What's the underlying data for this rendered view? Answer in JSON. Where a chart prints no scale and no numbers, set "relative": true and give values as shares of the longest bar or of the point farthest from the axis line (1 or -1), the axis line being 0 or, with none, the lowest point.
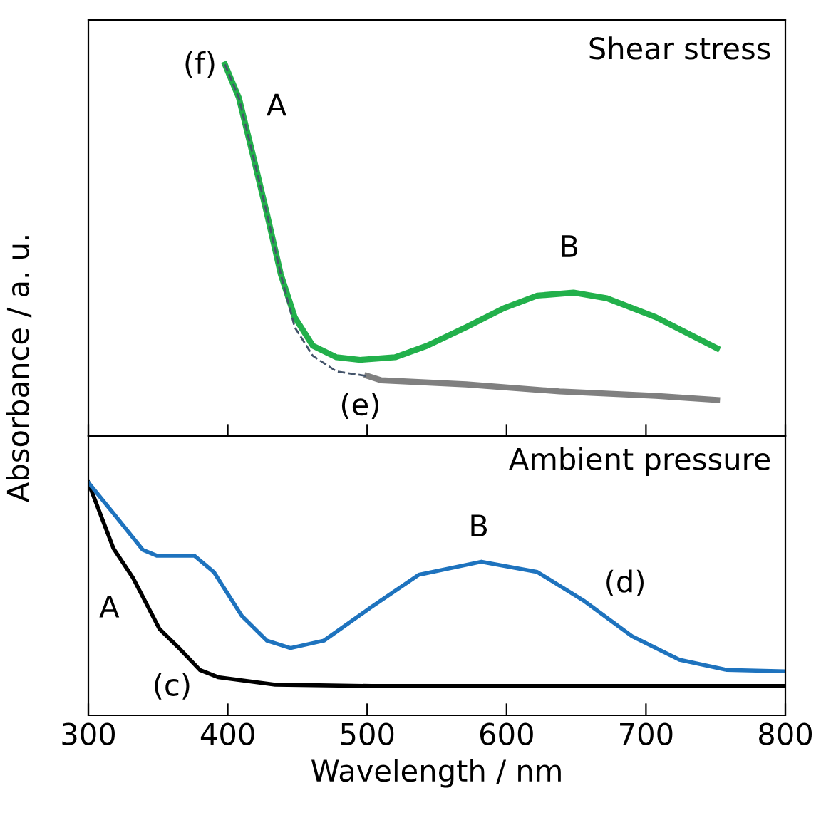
{
  "chart_data": [
    {
      "type": "line",
      "relative": true,
      "ylabel": "Absorbance / a. u.",
      "xlim": [
        300,
        800
      ],
      "xticks": [
        300,
        400,
        500,
        600,
        700,
        800
      ],
      "tick_labels": false,
      "grid": false,
      "legend": false,
      "series": [
        {
          "color": "#44546a",
          "line_style": "dashed",
          "x": [
            398,
            408,
            418,
            428,
            438,
            448,
            461,
            478,
            499
          ],
          "values": [
            1.0,
            0.91,
            0.757,
            0.6,
            0.436,
            0.293,
            0.216,
            0.174,
            0.162
          ]
        },
        {
          "color": "#808080",
          "x": [
            500,
            510,
            571,
            638,
            707,
            751
          ],
          "values": [
            0.162,
            0.15,
            0.139,
            0.12,
            0.108,
            0.097
          ]
        },
        {
          "color": "#22b04b",
          "x": [
            398,
            408,
            418,
            428,
            438,
            448,
            461,
            478,
            495,
            520,
            543,
            571,
            598,
            622,
            648,
            672,
            707,
            751
          ],
          "values": [
            1.0,
            0.91,
            0.757,
            0.6,
            0.436,
            0.32,
            0.243,
            0.212,
            0.205,
            0.212,
            0.243,
            0.293,
            0.344,
            0.378,
            0.386,
            0.371,
            0.32,
            0.236
          ]
        }
      ],
      "annotations": [
        "Shear stress",
        "(f)",
        "A",
        "B",
        "(e)"
      ]
    },
    {
      "type": "line",
      "relative": true,
      "xlabel": "Wavelength / nm",
      "xlim": [
        300,
        800
      ],
      "xticks": [
        300,
        400,
        500,
        600,
        700,
        800
      ],
      "tick_labels": "x",
      "grid": false,
      "legend": false,
      "series": [
        {
          "color": "#000000",
          "x": [
            300,
            318,
            332,
            351,
            366,
            380,
            393,
            434,
            503,
            636,
            799
          ],
          "values": [
            1.0,
            0.717,
            0.591,
            0.371,
            0.283,
            0.195,
            0.164,
            0.132,
            0.126,
            0.126,
            0.126
          ]
        },
        {
          "color": "#1e73be",
          "x": [
            300,
            318,
            339,
            349,
            376,
            390,
            410,
            428,
            445,
            469,
            503,
            537,
            582,
            622,
            656,
            690,
            724,
            758,
            799
          ],
          "values": [
            1.0,
            0.868,
            0.711,
            0.686,
            0.686,
            0.616,
            0.428,
            0.321,
            0.289,
            0.321,
            0.465,
            0.604,
            0.66,
            0.616,
            0.49,
            0.34,
            0.239,
            0.195,
            0.189
          ]
        }
      ],
      "annotations": [
        "Ambient pressure",
        "A",
        "(c)",
        "B",
        "(d)"
      ]
    }
  ]
}
